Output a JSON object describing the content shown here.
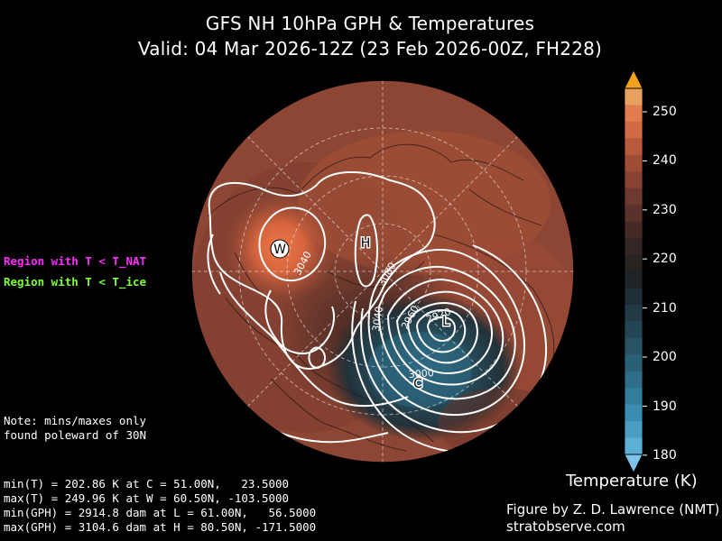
{
  "title": {
    "line1": "GFS NH 10hPa GPH & Temperatures",
    "line2": "Valid: 04 Mar 2026-12Z  (23 Feb 2026-00Z, FH228)"
  },
  "legend": {
    "nat_label": "Region with T < T_NAT",
    "nat_color": "#ff2bff",
    "ice_label": "Region with T < T_ice",
    "ice_color": "#7bff3b"
  },
  "note": {
    "line1": "Note: mins/maxes only",
    "line2": "found poleward of 30N"
  },
  "stats": {
    "min_t": "min(T) = 202.86 K at C = 51.00N,   23.5000",
    "max_t": "max(T) = 249.96 K at W = 60.50N, -103.5000",
    "min_gph": "min(GPH) = 2914.8 dam at L = 61.00N,   56.5000",
    "max_gph": "max(GPH) = 3104.6 dam at H = 80.50N, -171.5000"
  },
  "markers": {
    "warm": "W",
    "cold": "C",
    "low": "L",
    "high": "H"
  },
  "contour_labels": [
    "3040",
    "3080",
    "3040",
    "2960",
    "2920",
    "3000"
  ],
  "colorbar": {
    "label": "Temperature (K)",
    "ticks": [
      "250",
      "240",
      "230",
      "220",
      "210",
      "200",
      "190",
      "180"
    ],
    "colors": [
      "#e6a060",
      "#e07c4e",
      "#cf6a42",
      "#b85a3c",
      "#9e4c36",
      "#874232",
      "#6e392e",
      "#5a322b",
      "#452b28",
      "#332624",
      "#262321",
      "#1d2326",
      "#1f2e35",
      "#213a44",
      "#244654",
      "#275364",
      "#2a6076",
      "#2e6e89",
      "#337d9c",
      "#3a8db0",
      "#4a9ec2",
      "#5cb0d3"
    ],
    "over_color": "#f2a11c",
    "under_color": "#7cc4e8"
  },
  "credit": {
    "line1": "Figure by Z. D. Lawrence (NMT)",
    "line2": "stratobserve.com"
  }
}
